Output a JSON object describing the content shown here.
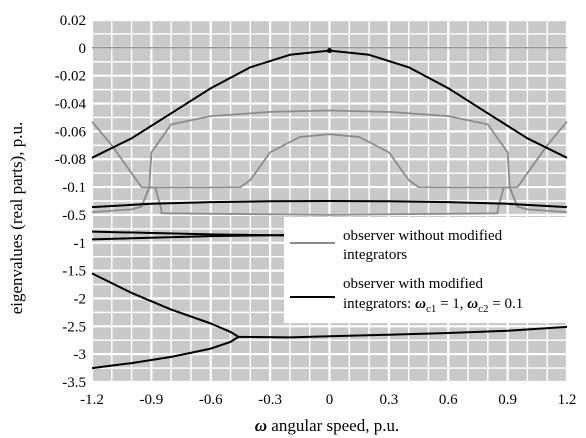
{
  "chart_data": {
    "type": "line",
    "xlabel_symbol": "ω",
    "xlabel_text": " angular speed, p.u.",
    "ylabel": "eigenvalues (real parts), p.u.",
    "xlim": [
      -1.2,
      1.2
    ],
    "x_ticks": [
      "-1.2",
      "-0.9",
      "-0.6",
      "-0.3",
      "0",
      "0.3",
      "0.6",
      "0.9",
      "1.2"
    ],
    "y_ticks": [
      "0.02",
      "0",
      "-0.02",
      "-0.04",
      "-0.06",
      "-0.08",
      "-0.1",
      "-0.5",
      "-1",
      "-1.5",
      "-2",
      "-2.5",
      "-3",
      "-3.5"
    ],
    "y_axis_note": "piecewise scale: 0.02 per division from 0.02 to -0.1, 0.5 per division from -0.1 to -3.5",
    "grid": true,
    "legend": {
      "placement": "right-center",
      "entries": [
        {
          "line1": "observer without modified",
          "line2": "integrators",
          "color": "#8c8c8c"
        },
        {
          "line1": "observer with modified",
          "line2_prefix": "integrators: ",
          "w1_sym": "ω",
          "w1_sub": "c1",
          "w1_val": " = 1, ",
          "w2_sym": "ω",
          "w2_sub": "c2",
          "w2_val": " = 0.1",
          "color": "#000000"
        }
      ]
    },
    "series": [
      {
        "key": "gray-outer",
        "color": "#8c8c8c",
        "points": [
          [
            -1.2,
            -0.053
          ],
          [
            -1.1,
            -0.07
          ],
          [
            -1.0,
            -0.09
          ],
          [
            -0.95,
            -0.1
          ],
          [
            -0.88,
            -0.11
          ],
          [
            -0.85,
            -0.5
          ],
          [
            -0.85,
            -0.57
          ],
          [
            0,
            -0.6
          ],
          [
            0.85,
            -0.57
          ],
          [
            0.85,
            -0.5
          ],
          [
            0.88,
            -0.11
          ],
          [
            0.95,
            -0.1
          ],
          [
            1.0,
            -0.09
          ],
          [
            1.1,
            -0.07
          ],
          [
            1.2,
            -0.053
          ]
        ]
      },
      {
        "key": "gray-upper",
        "color": "#8c8c8c",
        "points": [
          [
            -0.91,
            -0.1
          ],
          [
            -0.9,
            -0.075
          ],
          [
            -0.8,
            -0.055
          ],
          [
            -0.6,
            -0.049
          ],
          [
            -0.3,
            -0.046
          ],
          [
            0,
            -0.045
          ],
          [
            0.3,
            -0.046
          ],
          [
            0.6,
            -0.049
          ],
          [
            0.8,
            -0.055
          ],
          [
            0.9,
            -0.075
          ],
          [
            0.91,
            -0.1
          ]
        ]
      },
      {
        "key": "gray-inner",
        "color": "#8c8c8c",
        "points": [
          [
            -1.2,
            -0.55
          ],
          [
            -1.0,
            -0.5
          ],
          [
            -0.95,
            -0.45
          ],
          [
            -0.91,
            -0.1
          ],
          [
            -0.9,
            -0.105
          ],
          [
            -0.6,
            -0.105
          ],
          [
            -0.45,
            -0.1
          ],
          [
            -0.4,
            -0.095
          ],
          [
            -0.3,
            -0.075
          ],
          [
            -0.15,
            -0.064
          ],
          [
            0,
            -0.062
          ],
          [
            0.15,
            -0.064
          ],
          [
            0.3,
            -0.075
          ],
          [
            0.4,
            -0.095
          ],
          [
            0.45,
            -0.1
          ],
          [
            0.6,
            -0.105
          ],
          [
            0.9,
            -0.105
          ],
          [
            0.91,
            -0.1
          ],
          [
            0.95,
            -0.45
          ],
          [
            1.0,
            -0.5
          ],
          [
            1.2,
            -0.55
          ]
        ]
      },
      {
        "key": "black-top",
        "color": "#000000",
        "points": [
          [
            -1.2,
            -0.079
          ],
          [
            -1.0,
            -0.065
          ],
          [
            -0.8,
            -0.047
          ],
          [
            -0.6,
            -0.029
          ],
          [
            -0.4,
            -0.014
          ],
          [
            -0.2,
            -0.005
          ],
          [
            0,
            -0.002
          ],
          [
            0.2,
            -0.005
          ],
          [
            0.4,
            -0.014
          ],
          [
            0.6,
            -0.029
          ],
          [
            0.8,
            -0.047
          ],
          [
            1.0,
            -0.065
          ],
          [
            1.2,
            -0.079
          ]
        ]
      },
      {
        "key": "black-mid",
        "color": "#000000",
        "points": [
          [
            -1.2,
            -0.46
          ],
          [
            -0.9,
            -0.4
          ],
          [
            -0.6,
            -0.37
          ],
          [
            -0.3,
            -0.355
          ],
          [
            0,
            -0.35
          ],
          [
            0.3,
            -0.355
          ],
          [
            0.6,
            -0.37
          ],
          [
            0.9,
            -0.4
          ],
          [
            1.2,
            -0.46
          ]
        ]
      },
      {
        "key": "black-m1a",
        "color": "#000000",
        "points": [
          [
            -1.2,
            -0.9
          ],
          [
            -0.6,
            -0.95
          ],
          [
            0,
            -0.98
          ],
          [
            0.6,
            -0.99
          ],
          [
            1.2,
            -0.99
          ]
        ]
      },
      {
        "key": "black-m1b",
        "color": "#000000",
        "points": [
          [
            -1.2,
            -1.04
          ],
          [
            -0.6,
            -0.98
          ],
          [
            0,
            -0.95
          ],
          [
            0.6,
            -0.95
          ],
          [
            1.2,
            -0.97
          ]
        ]
      },
      {
        "key": "black-lower",
        "color": "#000000",
        "points": [
          [
            -1.2,
            -1.65
          ],
          [
            -1.0,
            -2.0
          ],
          [
            -0.8,
            -2.3
          ],
          [
            -0.6,
            -2.55
          ],
          [
            -0.5,
            -2.7
          ],
          [
            -0.46,
            -2.79
          ],
          [
            -0.5,
            -2.88
          ],
          [
            -0.6,
            -3.0
          ],
          [
            -0.8,
            -3.15
          ],
          [
            -1.0,
            -3.26
          ],
          [
            -1.2,
            -3.35
          ]
        ]
      },
      {
        "key": "black-right",
        "color": "#000000",
        "points": [
          [
            -0.46,
            -2.79
          ],
          [
            -0.2,
            -2.8
          ],
          [
            0,
            -2.78
          ],
          [
            0.3,
            -2.75
          ],
          [
            0.6,
            -2.72
          ],
          [
            0.9,
            -2.68
          ],
          [
            1.2,
            -2.61
          ]
        ]
      }
    ],
    "marker": {
      "x": 0,
      "y": -0.002
    }
  }
}
